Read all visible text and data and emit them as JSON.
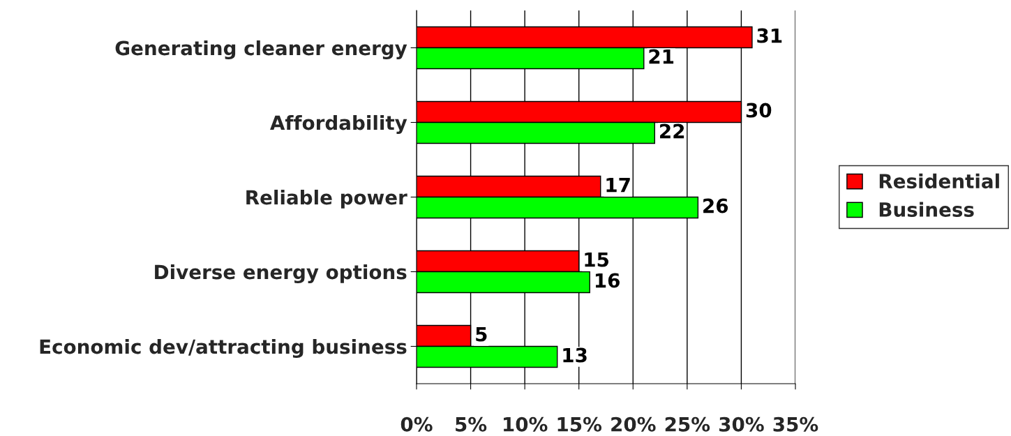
{
  "chart_data": {
    "type": "bar",
    "orientation": "horizontal",
    "categories": [
      "Generating cleaner energy",
      "Affordability",
      "Reliable power",
      "Diverse energy options",
      "Economic dev/attracting business"
    ],
    "series": [
      {
        "name": "Residential",
        "color": "#ff0000",
        "values": [
          31,
          30,
          17,
          15,
          5
        ]
      },
      {
        "name": "Business",
        "color": "#00ff00",
        "values": [
          21,
          22,
          26,
          16,
          13
        ]
      }
    ],
    "xlim": [
      0,
      35
    ],
    "xticks": [
      {
        "value": 0,
        "label": "0%"
      },
      {
        "value": 5,
        "label": "5%"
      },
      {
        "value": 10,
        "label": "10%"
      },
      {
        "value": 15,
        "label": "15%"
      },
      {
        "value": 20,
        "label": "20%"
      },
      {
        "value": 25,
        "label": "25%"
      },
      {
        "value": 30,
        "label": "30%"
      },
      {
        "value": 35,
        "label": "35%"
      }
    ],
    "grid": "x",
    "legend": "right",
    "data_labels": true
  }
}
